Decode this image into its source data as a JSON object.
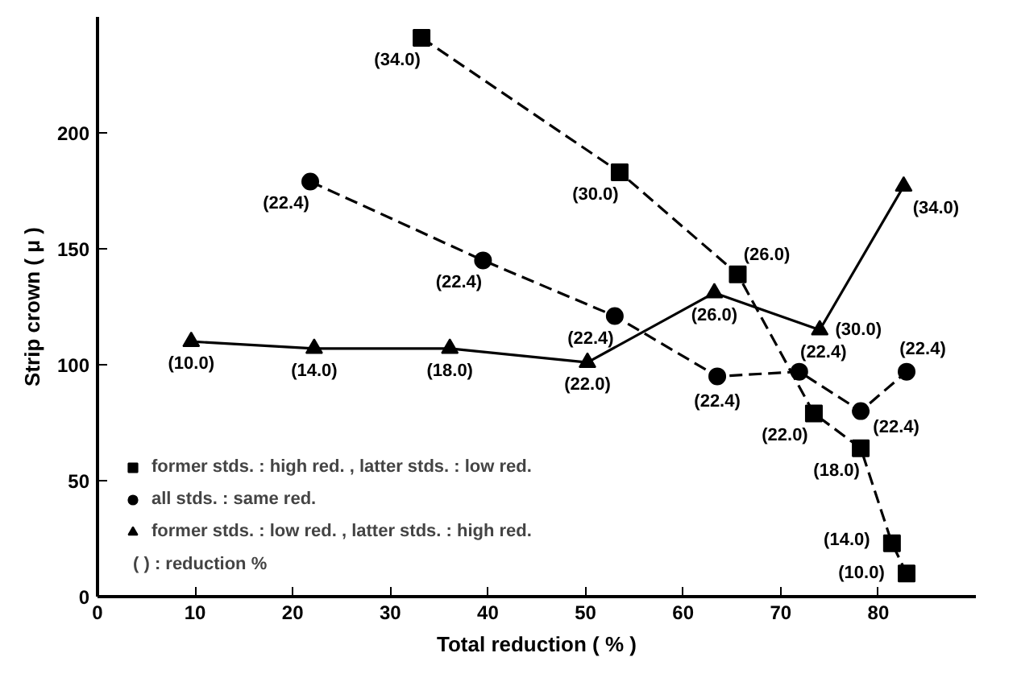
{
  "chart_data": {
    "type": "line",
    "xlabel": "Total reduction ( % )",
    "ylabel": "Strip crown ( μ )",
    "xlim": [
      0,
      90
    ],
    "ylim": [
      0,
      250
    ],
    "xticks": [
      0,
      10,
      20,
      30,
      40,
      50,
      60,
      70,
      80
    ],
    "yticks": [
      0,
      50,
      100,
      150,
      200
    ],
    "grid": false,
    "legend": "bottom left",
    "series": [
      {
        "name": "former stds. : high red. , latter stds. : low red.",
        "color": "#000000",
        "marker": "square",
        "line_style": "dashed",
        "x": [
          33.2,
          53.5,
          65.6,
          73.4,
          78.2,
          81.4,
          82.9
        ],
        "values": [
          241,
          183,
          139,
          79,
          64,
          23,
          10
        ]
      },
      {
        "name": "all stds. : same red.",
        "color": "#000000",
        "marker": "circle",
        "line_style": "dashed",
        "x": [
          21.8,
          39.5,
          53,
          63.5,
          71.9,
          78.2,
          82.9
        ],
        "values": [
          179,
          145,
          121,
          95,
          97,
          80,
          97
        ]
      },
      {
        "name": "former stds. : low red. , latter stds. : high red.",
        "color": "#000000",
        "marker": "triangle",
        "line_style": "solid",
        "x": [
          9.6,
          22.2,
          36.1,
          50.2,
          63.2,
          74,
          82.6
        ],
        "values": [
          110,
          107,
          107,
          101,
          131,
          115,
          177
        ]
      }
    ],
    "annotations": [
      {
        "text": "(34.0)",
        "x": 33.2,
        "y": 241
      },
      {
        "text": "(30.0)",
        "x": 53.5,
        "y": 183
      },
      {
        "text": "(26.0)",
        "x": 65.6,
        "y": 139
      },
      {
        "text": "(22.0)",
        "x": 73.4,
        "y": 79
      },
      {
        "text": "(18.0)",
        "x": 78.2,
        "y": 64
      },
      {
        "text": "(14.0)",
        "x": 81.4,
        "y": 23
      },
      {
        "text": "(10.0)",
        "x": 82.9,
        "y": 10
      },
      {
        "text": "(22.4)",
        "x": 21.8,
        "y": 179
      },
      {
        "text": "(22.4)",
        "x": 39.5,
        "y": 145
      },
      {
        "text": "(22.4)",
        "x": 53,
        "y": 121
      },
      {
        "text": "(22.4)",
        "x": 63.5,
        "y": 95
      },
      {
        "text": "(22.4)",
        "x": 71.9,
        "y": 97
      },
      {
        "text": "(22.4)",
        "x": 78.2,
        "y": 80
      },
      {
        "text": "(22.4)",
        "x": 82.9,
        "y": 97
      },
      {
        "text": "(10.0)",
        "x": 9.6,
        "y": 110
      },
      {
        "text": "(14.0)",
        "x": 22.2,
        "y": 107
      },
      {
        "text": "(18.0)",
        "x": 36.1,
        "y": 107
      },
      {
        "text": "(22.0)",
        "x": 50.2,
        "y": 101
      },
      {
        "text": "(26.0)",
        "x": 63.2,
        "y": 131
      },
      {
        "text": "(30.0)",
        "x": 74,
        "y": 115
      },
      {
        "text": "(34.0)",
        "x": 82.6,
        "y": 177
      },
      "(     ) : reduction %"
    ]
  }
}
